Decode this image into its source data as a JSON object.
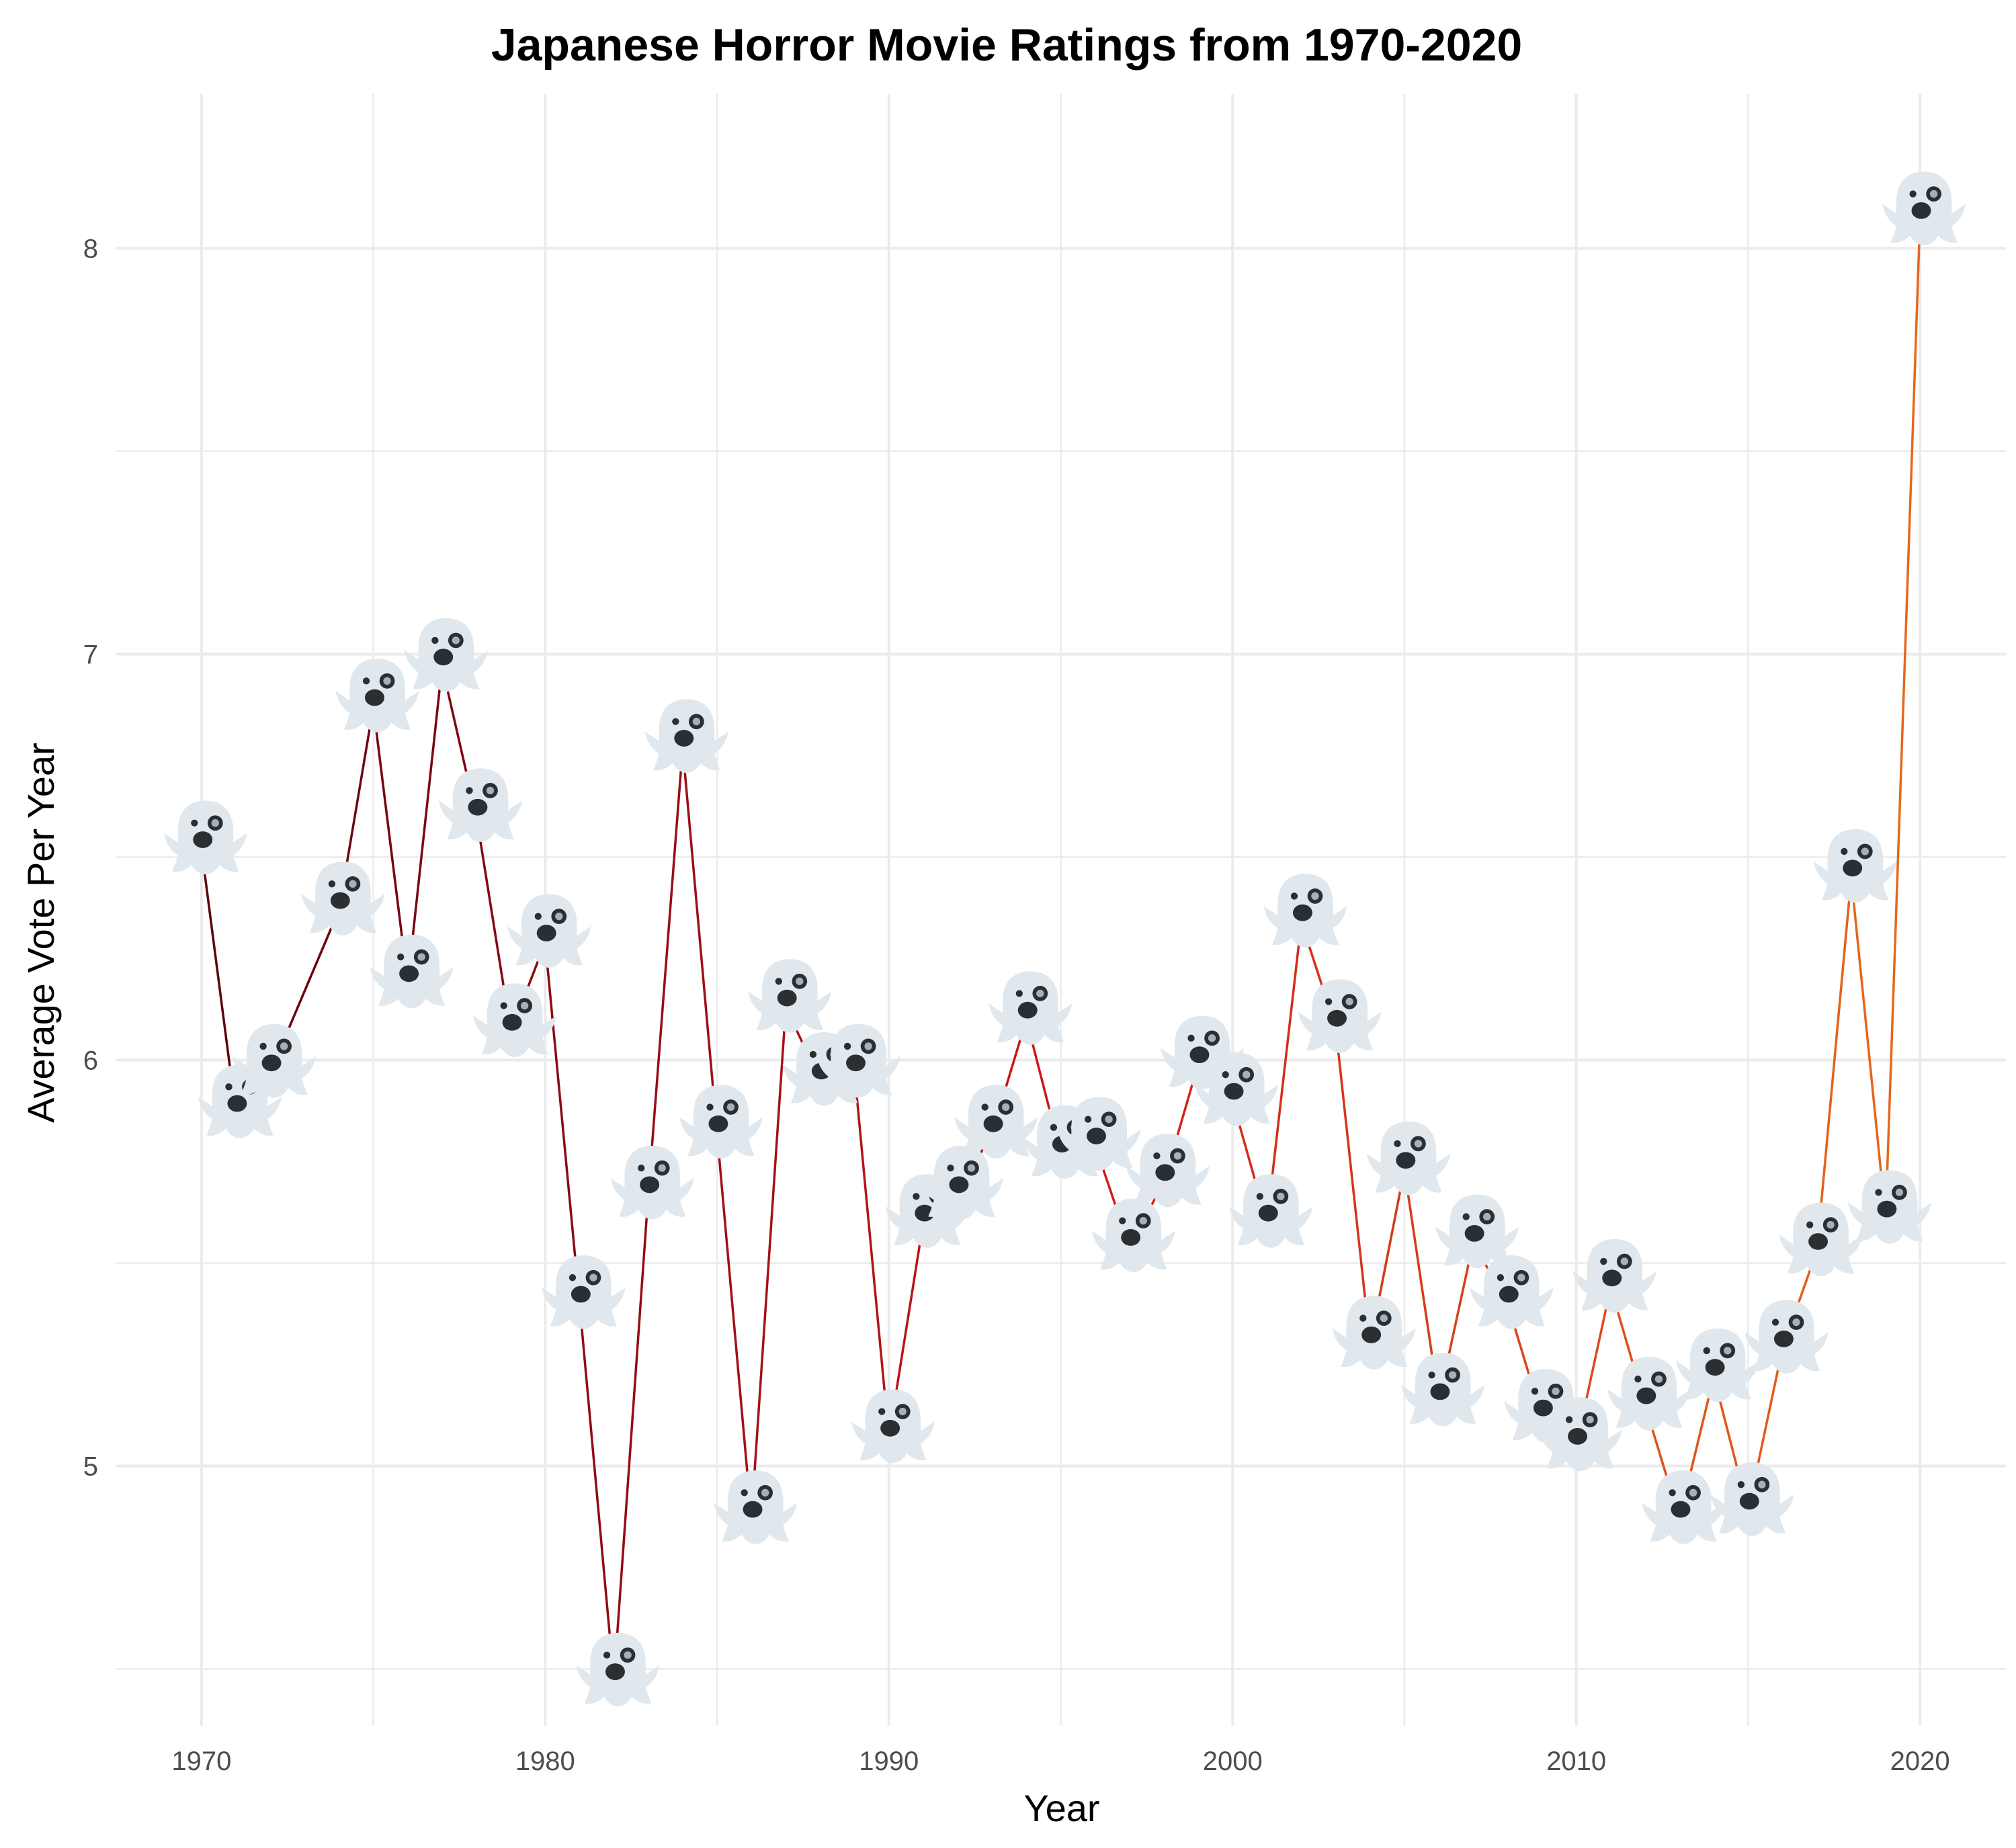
{
  "chart_data": {
    "type": "line",
    "title": "Japanese Horror Movie Ratings from 1970-2020",
    "xlabel": "Year",
    "ylabel": "Average Vote Per Year",
    "xlim": [
      1967.5,
      2022.5
    ],
    "ylim": [
      4.36,
      8.38
    ],
    "x_ticks": [
      1970,
      1980,
      1990,
      2000,
      2010,
      2020
    ],
    "x_tick_labels": [
      "1970",
      "1980",
      "1990",
      "2000",
      "2010",
      "2020"
    ],
    "y_ticks": [
      5,
      6,
      7,
      8
    ],
    "y_tick_labels": [
      "5",
      "6",
      "7",
      "8"
    ],
    "grid": true,
    "marker": "ghost",
    "line_gradient": [
      "#5c0010",
      "#cc1a1a",
      "#e56a1a"
    ],
    "x": [
      1970,
      1971,
      1972,
      1974,
      1975,
      1976,
      1977,
      1978,
      1979,
      1980,
      1981,
      1982,
      1983,
      1984,
      1985,
      1986,
      1987,
      1988,
      1989,
      1990,
      1991,
      1992,
      1993,
      1994,
      1995,
      1996,
      1997,
      1998,
      1999,
      2000,
      2001,
      2002,
      2003,
      2004,
      2005,
      2006,
      2007,
      2008,
      2009,
      2010,
      2011,
      2012,
      2013,
      2014,
      2015,
      2016,
      2017,
      2018,
      2019,
      2020
    ],
    "values": [
      6.52,
      5.87,
      5.97,
      6.37,
      6.87,
      6.19,
      6.97,
      6.6,
      6.07,
      6.29,
      5.4,
      4.47,
      5.67,
      6.77,
      5.82,
      4.87,
      6.13,
      5.95,
      5.97,
      5.07,
      5.6,
      5.67,
      5.82,
      6.1,
      5.77,
      5.79,
      5.54,
      5.7,
      5.99,
      5.9,
      5.6,
      6.34,
      6.08,
      5.3,
      5.73,
      5.16,
      5.55,
      5.4,
      5.12,
      5.05,
      5.44,
      5.15,
      4.87,
      5.22,
      4.89,
      5.29,
      5.53,
      6.45,
      5.61,
      8.07
    ]
  }
}
